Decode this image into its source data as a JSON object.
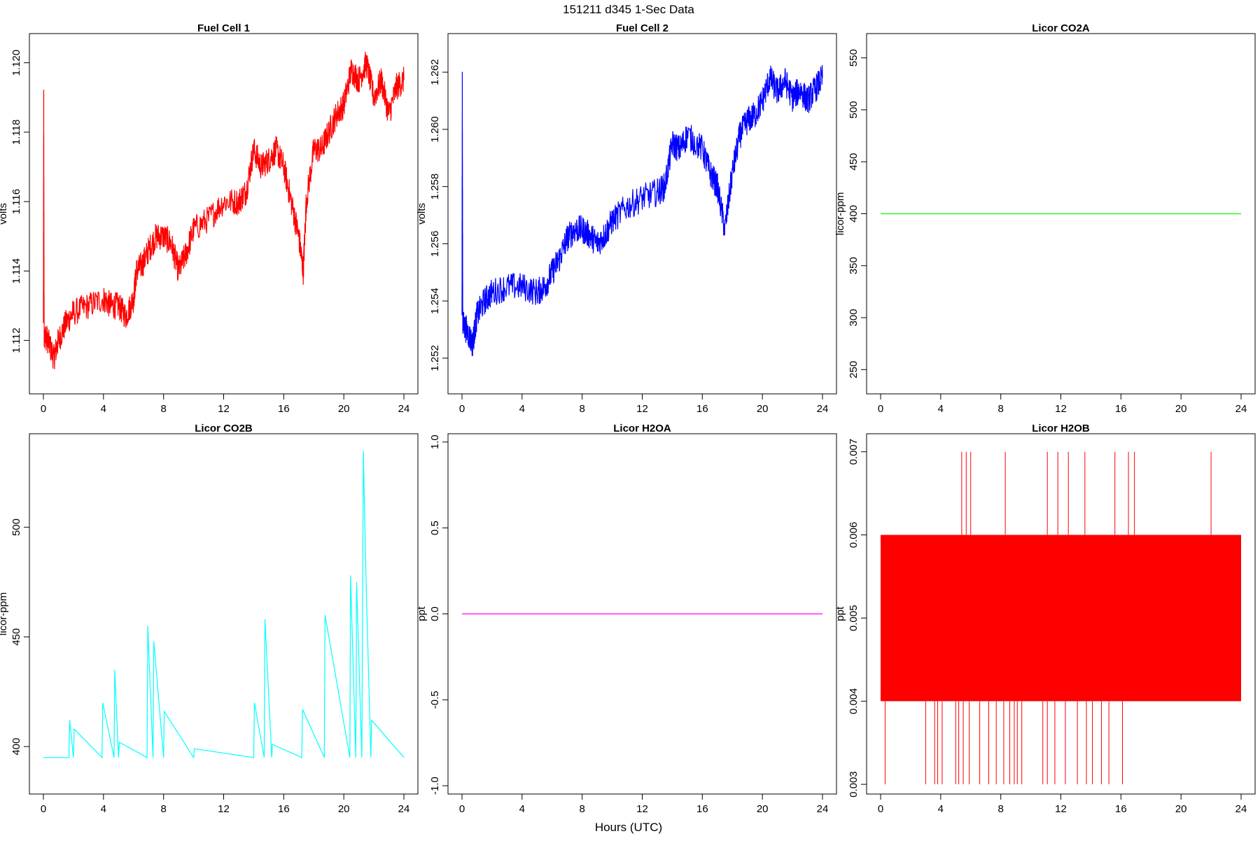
{
  "figure": {
    "title": "151211    d345    1-Sec Data",
    "xlabel": "Hours (UTC)"
  },
  "chart_data": [
    {
      "type": "line",
      "title": "Fuel Cell 1",
      "ylabel": "volts",
      "color": "#ff0000",
      "xlim": [
        0,
        24
      ],
      "ylim": [
        1.1105,
        1.1208
      ],
      "xticks": [
        0,
        4,
        8,
        12,
        16,
        20,
        24
      ],
      "yticks": [
        1.112,
        1.114,
        1.116,
        1.118,
        1.12
      ],
      "ytick_labels": [
        "1.112",
        "1.114",
        "1.116",
        "1.118",
        "1.120"
      ],
      "x": [
        0,
        0.02,
        0.05,
        0.3,
        0.7,
        1.0,
        1.5,
        2.0,
        3.0,
        4.0,
        4.5,
        5.0,
        5.5,
        6.0,
        6.2,
        6.6,
        7.0,
        7.5,
        8.0,
        8.5,
        9.0,
        9.5,
        10.0,
        11.0,
        12.0,
        13.0,
        13.5,
        14.0,
        14.5,
        15.0,
        15.5,
        16.0,
        16.5,
        17.0,
        17.3,
        17.5,
        18.0,
        18.5,
        19.0,
        19.5,
        20.0,
        20.5,
        21.0,
        21.5,
        22.0,
        22.5,
        23.0,
        23.5,
        24.0
      ],
      "y": [
        1.1125,
        1.1192,
        1.1122,
        1.112,
        1.1115,
        1.112,
        1.1125,
        1.1128,
        1.113,
        1.1132,
        1.113,
        1.113,
        1.1127,
        1.1132,
        1.114,
        1.1142,
        1.1146,
        1.115,
        1.115,
        1.1148,
        1.114,
        1.1145,
        1.1152,
        1.1155,
        1.116,
        1.116,
        1.1163,
        1.1175,
        1.117,
        1.1172,
        1.1175,
        1.117,
        1.116,
        1.115,
        1.114,
        1.116,
        1.1175,
        1.1175,
        1.118,
        1.1185,
        1.1188,
        1.1198,
        1.1195,
        1.12,
        1.119,
        1.1195,
        1.1185,
        1.1193,
        1.1195
      ],
      "noise": 0.0004
    },
    {
      "type": "line",
      "title": "Fuel Cell 2",
      "ylabel": "volts",
      "color": "#0000ff",
      "xlim": [
        0,
        24
      ],
      "ylim": [
        1.2508,
        1.2633
      ],
      "xticks": [
        0,
        4,
        8,
        12,
        16,
        20,
        24
      ],
      "yticks": [
        1.252,
        1.254,
        1.256,
        1.258,
        1.26,
        1.262
      ],
      "ytick_labels": [
        "1.252",
        "1.254",
        "1.256",
        "1.258",
        "1.260",
        "1.262"
      ],
      "x": [
        0,
        0.02,
        0.05,
        0.3,
        0.7,
        1.0,
        1.5,
        2.0,
        3.0,
        4.0,
        5.0,
        5.5,
        6.0,
        6.5,
        7.0,
        7.5,
        8.0,
        8.5,
        9.0,
        9.5,
        10.0,
        11.0,
        12.0,
        13.0,
        13.5,
        14.0,
        14.5,
        15.0,
        16.0,
        16.5,
        17.0,
        17.5,
        18.0,
        18.5,
        19.0,
        19.5,
        20.0,
        20.5,
        21.0,
        21.5,
        22.0,
        22.5,
        23.0,
        23.5,
        24.0
      ],
      "y": [
        1.2535,
        1.2618,
        1.2532,
        1.253,
        1.2525,
        1.2535,
        1.254,
        1.2543,
        1.2545,
        1.2545,
        1.2543,
        1.2545,
        1.255,
        1.2555,
        1.2562,
        1.2565,
        1.2565,
        1.2563,
        1.256,
        1.2563,
        1.2568,
        1.2573,
        1.2576,
        1.2578,
        1.258,
        1.2595,
        1.2593,
        1.2598,
        1.2593,
        1.2585,
        1.258,
        1.2565,
        1.2585,
        1.2598,
        1.2603,
        1.2605,
        1.261,
        1.2618,
        1.2613,
        1.2617,
        1.2611,
        1.2614,
        1.261,
        1.2614,
        1.2618
      ],
      "noise": 0.0005
    },
    {
      "type": "line",
      "title": "Licor CO2A",
      "ylabel": "licor-ppm",
      "color": "#00ff00",
      "xlim": [
        0,
        24
      ],
      "ylim": [
        228,
        572
      ],
      "xticks": [
        0,
        4,
        8,
        12,
        16,
        20,
        24
      ],
      "yticks": [
        250,
        300,
        350,
        400,
        450,
        500,
        550
      ],
      "ytick_labels": [
        "250",
        "300",
        "350",
        "400",
        "450",
        "500",
        "550"
      ],
      "x": [
        0,
        24
      ],
      "y": [
        400,
        400
      ],
      "noise": 0
    },
    {
      "type": "line",
      "title": "Licor CO2B",
      "ylabel": "licor-ppm",
      "color": "#00ffff",
      "xlim": [
        0,
        24
      ],
      "ylim": [
        379,
        542
      ],
      "xticks": [
        0,
        4,
        8,
        12,
        16,
        20,
        24
      ],
      "yticks": [
        400,
        450,
        500
      ],
      "ytick_labels": [
        "400",
        "450",
        "500"
      ],
      "x": [
        0,
        0.05,
        1.7,
        1.75,
        2.0,
        2.05,
        3.9,
        3.95,
        4.7,
        4.75,
        5.0,
        5.05,
        6.9,
        6.95,
        7.3,
        7.35,
        8.0,
        8.05,
        10.0,
        10.05,
        14.0,
        14.05,
        14.7,
        14.75,
        15.2,
        15.25,
        17.2,
        17.25,
        18.7,
        18.75,
        20.4,
        20.45,
        20.8,
        20.85,
        21.2,
        21.3,
        21.4,
        21.5,
        21.8,
        21.85,
        24.0
      ],
      "y": [
        395,
        395,
        395,
        412,
        395,
        408,
        395,
        420,
        395,
        435,
        395,
        402,
        395,
        455,
        395,
        448,
        395,
        416,
        395,
        399,
        395,
        420,
        395,
        458,
        395,
        401,
        395,
        417,
        395,
        460,
        395,
        478,
        395,
        475,
        395,
        535,
        500,
        470,
        395,
        412,
        395
      ],
      "noise": 0
    },
    {
      "type": "line",
      "title": "Licor H2OA",
      "ylabel": "ppt",
      "color": "#ff00ff",
      "xlim": [
        0,
        24
      ],
      "ylim": [
        -1.04,
        1.04
      ],
      "xticks": [
        0,
        4,
        8,
        12,
        16,
        20,
        24
      ],
      "yticks": [
        -1.0,
        -0.5,
        0.0,
        0.5,
        1.0
      ],
      "ytick_labels": [
        "-1.0",
        "-0.5",
        "0.0",
        "0.5",
        "1.0"
      ],
      "x": [
        0,
        24
      ],
      "y": [
        0,
        0
      ],
      "noise": 0
    },
    {
      "type": "line",
      "title": "Licor H2OB",
      "ylabel": "ppt",
      "color": "#ff0000",
      "xlim": [
        0,
        24
      ],
      "ylim": [
        0.0029,
        0.0072
      ],
      "xticks": [
        0,
        4,
        8,
        12,
        16,
        20,
        24
      ],
      "yticks": [
        0.003,
        0.004,
        0.005,
        0.006,
        0.007
      ],
      "ytick_labels": [
        "0.003",
        "0.004",
        "0.005",
        "0.006",
        "0.007"
      ],
      "band": [
        0.004,
        0.006
      ],
      "band_x": [
        0,
        24
      ],
      "high_spikes_x": [
        5.4,
        5.7,
        6.0,
        8.3,
        11.1,
        11.8,
        12.5,
        13.6,
        15.6,
        16.5,
        16.9,
        22.0
      ],
      "high_spike_y": 0.007,
      "low_spikes_x": [
        0.3,
        3.0,
        3.6,
        3.8,
        4.1,
        5.0,
        5.2,
        5.5,
        5.9,
        6.6,
        7.2,
        7.7,
        8.2,
        8.6,
        8.9,
        9.1,
        9.4,
        10.8,
        11.1,
        11.6,
        12.3,
        13.1,
        13.7,
        14.1,
        14.7,
        15.2,
        16.1
      ],
      "low_spike_y": 0.003,
      "noise": 0
    }
  ]
}
